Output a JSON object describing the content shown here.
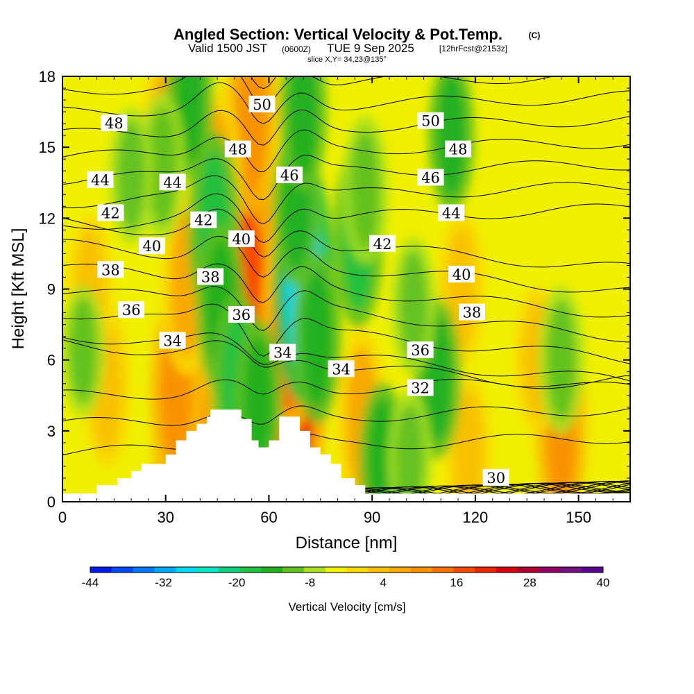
{
  "chart_data": {
    "type": "heatmap",
    "title": "Angled Section: Vertical Velocity & Pot.Temp.",
    "title_mark": "(C)",
    "subtitle_main": "Valid 1500 JST",
    "subtitle_z": "(0600Z)",
    "subtitle_date": "TUE 9 Sep 2025",
    "subtitle_fcst": "[12hrFcst@2153z]",
    "slice_label": "slice X,Y= 34,23@135°",
    "xlabel": "Distance [nm]",
    "ylabel": "Height [Kft MSL]",
    "xlim": [
      0,
      165
    ],
    "ylim": [
      0,
      18
    ],
    "x_ticks": [
      0,
      30,
      60,
      90,
      120,
      150
    ],
    "y_ticks": [
      0,
      3,
      6,
      9,
      12,
      15,
      18
    ],
    "colorbar": {
      "label": "Vertical Velocity [cm/s]",
      "min": -44,
      "max": 40,
      "step": 4,
      "tick_values": [
        -44,
        -32,
        -20,
        -8,
        4,
        16,
        28,
        40
      ],
      "colors": [
        "#0018e8",
        "#0048f8",
        "#0078f8",
        "#00a8f8",
        "#00d8f0",
        "#00e8c0",
        "#10d080",
        "#20c040",
        "#20b020",
        "#60c020",
        "#a8e020",
        "#f0f000",
        "#f8d800",
        "#f8c000",
        "#f8a800",
        "#f89000",
        "#f87000",
        "#f84800",
        "#f02000",
        "#d80010",
        "#b00030",
        "#900060",
        "#701080",
        "#580090"
      ]
    },
    "terrain_kft": [
      [
        0,
        0.35
      ],
      [
        10,
        0.35
      ],
      [
        10,
        0.7
      ],
      [
        16,
        0.7
      ],
      [
        16,
        1.0
      ],
      [
        20,
        1.0
      ],
      [
        20,
        1.3
      ],
      [
        23,
        1.3
      ],
      [
        23,
        1.6
      ],
      [
        30,
        1.6
      ],
      [
        30,
        2.0
      ],
      [
        33,
        2.0
      ],
      [
        33,
        2.6
      ],
      [
        36,
        2.6
      ],
      [
        36,
        3.0
      ],
      [
        39,
        3.0
      ],
      [
        39,
        3.3
      ],
      [
        42,
        3.3
      ],
      [
        42,
        3.6
      ],
      [
        43,
        3.6
      ],
      [
        43,
        3.9
      ],
      [
        52,
        3.9
      ],
      [
        52,
        3.5
      ],
      [
        55,
        3.5
      ],
      [
        55,
        2.6
      ],
      [
        57,
        2.6
      ],
      [
        57,
        2.3
      ],
      [
        60,
        2.3
      ],
      [
        60,
        2.6
      ],
      [
        63,
        2.6
      ],
      [
        63,
        3.6
      ],
      [
        69,
        3.6
      ],
      [
        69,
        3.0
      ],
      [
        72,
        3.0
      ],
      [
        72,
        2.3
      ],
      [
        75,
        2.3
      ],
      [
        75,
        2.0
      ],
      [
        78,
        2.0
      ],
      [
        78,
        1.6
      ],
      [
        81,
        1.6
      ],
      [
        81,
        1.0
      ],
      [
        85,
        1.0
      ],
      [
        85,
        0.7
      ],
      [
        88,
        0.7
      ],
      [
        88,
        0.35
      ],
      [
        165,
        0.35
      ]
    ],
    "velocity_features": [
      {
        "x": 35,
        "y": 3.3,
        "value": 26
      },
      {
        "x": 38,
        "y": 2.2,
        "value": 18
      },
      {
        "x": 33,
        "y": 4.6,
        "value": 16
      },
      {
        "x": 53,
        "y": 11.0,
        "value": 28
      },
      {
        "x": 55,
        "y": 16.5,
        "value": 18
      },
      {
        "x": 54,
        "y": 8.2,
        "value": 24
      },
      {
        "x": 68,
        "y": 5.5,
        "value": 30
      },
      {
        "x": 66,
        "y": 7.6,
        "value": 22
      },
      {
        "x": 45,
        "y": 13.6,
        "value": 13
      },
      {
        "x": 36,
        "y": 9.2,
        "value": 14
      },
      {
        "x": 30,
        "y": 15.5,
        "value": 12
      },
      {
        "x": 13,
        "y": 4.8,
        "value": 10
      },
      {
        "x": 8,
        "y": 9.0,
        "value": 8
      },
      {
        "x": 87,
        "y": 3.5,
        "value": 14
      },
      {
        "x": 116,
        "y": 9.0,
        "value": 9
      },
      {
        "x": 145,
        "y": 3.0,
        "value": 16
      },
      {
        "x": 118,
        "y": 2.1,
        "value": 9
      },
      {
        "x": 138,
        "y": 6.0,
        "value": 8
      },
      {
        "x": 44,
        "y": 11.6,
        "value": -16
      },
      {
        "x": 46,
        "y": 8.2,
        "value": -12
      },
      {
        "x": 51,
        "y": 4.8,
        "value": -16
      },
      {
        "x": 57,
        "y": 4.3,
        "value": -10
      },
      {
        "x": 70,
        "y": 9.4,
        "value": -26
      },
      {
        "x": 68,
        "y": 12.5,
        "value": -10
      },
      {
        "x": 74,
        "y": 6.9,
        "value": -12
      },
      {
        "x": 70,
        "y": 16.5,
        "value": -10
      },
      {
        "x": 37,
        "y": 17.0,
        "value": -10
      },
      {
        "x": 29,
        "y": 14.2,
        "value": -8
      },
      {
        "x": 86,
        "y": 11.2,
        "value": -14
      },
      {
        "x": 88,
        "y": 13.2,
        "value": -8
      },
      {
        "x": 113,
        "y": 15.5,
        "value": -9
      },
      {
        "x": 109,
        "y": 5.2,
        "value": -10
      },
      {
        "x": 102,
        "y": 8.3,
        "value": -6
      },
      {
        "x": 93,
        "y": 1.8,
        "value": -9
      },
      {
        "x": 101,
        "y": 1.8,
        "value": -6
      },
      {
        "x": 145,
        "y": 6.0,
        "value": -8
      },
      {
        "x": 6,
        "y": 6.4,
        "value": -5
      },
      {
        "x": 20,
        "y": 13.8,
        "value": -6
      }
    ],
    "theta_contours_K": [
      {
        "value": 30,
        "label_at": [
          [
            126,
            1.0
          ]
        ]
      },
      {
        "value": 32,
        "label_at": [
          [
            104,
            4.8
          ]
        ]
      },
      {
        "value": 34,
        "label_at": [
          [
            32,
            6.8
          ],
          [
            64,
            6.3
          ],
          [
            81,
            5.6
          ]
        ]
      },
      {
        "value": 36,
        "label_at": [
          [
            20,
            8.1
          ],
          [
            52,
            7.9
          ],
          [
            104,
            6.4
          ]
        ]
      },
      {
        "value": 38,
        "label_at": [
          [
            14,
            9.8
          ],
          [
            43,
            9.5
          ],
          [
            119,
            8.0
          ]
        ]
      },
      {
        "value": 40,
        "label_at": [
          [
            26,
            10.8
          ],
          [
            52,
            11.1
          ],
          [
            116,
            9.6
          ]
        ]
      },
      {
        "value": 42,
        "label_at": [
          [
            14,
            12.2
          ],
          [
            41,
            11.9
          ],
          [
            93,
            10.9
          ]
        ]
      },
      {
        "value": 44,
        "label_at": [
          [
            11,
            13.6
          ],
          [
            32,
            13.5
          ],
          [
            113,
            12.2
          ]
        ]
      },
      {
        "value": 46,
        "label_at": [
          [
            66,
            13.8
          ],
          [
            107,
            13.7
          ]
        ]
      },
      {
        "value": 48,
        "label_at": [
          [
            15,
            16.0
          ],
          [
            51,
            14.9
          ],
          [
            115,
            14.9
          ]
        ]
      },
      {
        "value": 50,
        "label_at": [
          [
            58,
            16.8
          ],
          [
            107,
            16.1
          ]
        ]
      }
    ]
  }
}
